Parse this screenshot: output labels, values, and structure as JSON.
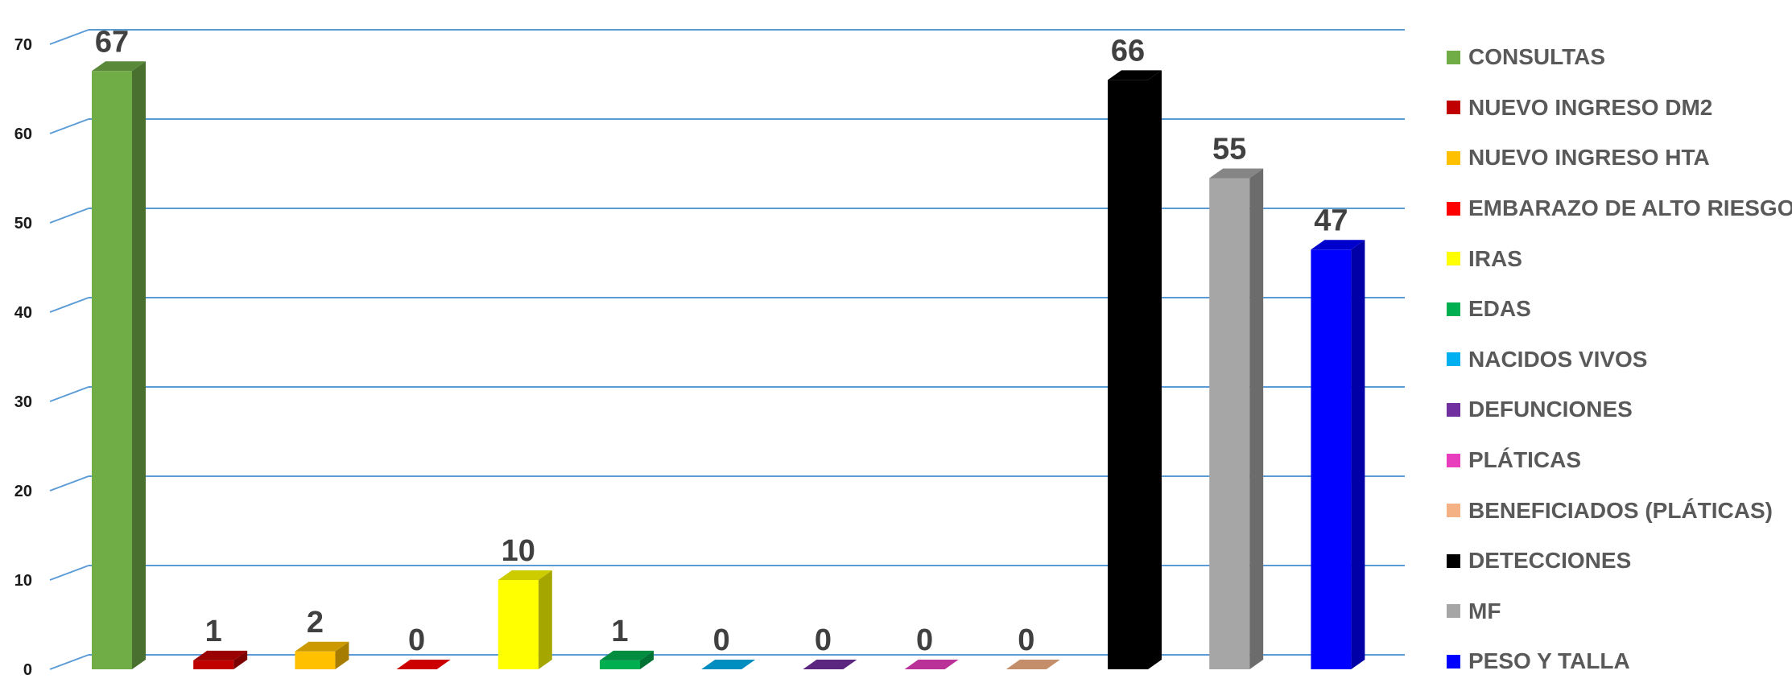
{
  "chart_data": {
    "type": "bar",
    "style": "3d-column",
    "ylim": [
      0,
      70
    ],
    "yticks": [
      0,
      10,
      20,
      30,
      40,
      50,
      60,
      70
    ],
    "grid": true,
    "legend_position": "right",
    "series": [
      {
        "name": "CONSULTAS",
        "value": 67,
        "color": "#70AD47"
      },
      {
        "name": "NUEVO INGRESO DM2",
        "value": 1,
        "color": "#C00000"
      },
      {
        "name": "NUEVO INGRESO HTA",
        "value": 2,
        "color": "#FFC000"
      },
      {
        "name": "EMBARAZO DE ALTO RIESGO",
        "value": 0,
        "color": "#FF0000"
      },
      {
        "name": "IRAS",
        "value": 10,
        "color": "#FFFF00"
      },
      {
        "name": "EDAS",
        "value": 1,
        "color": "#00B050"
      },
      {
        "name": "NACIDOS VIVOS",
        "value": 0,
        "color": "#00B0F0"
      },
      {
        "name": "DEFUNCIONES",
        "value": 0,
        "color": "#7030A0"
      },
      {
        "name": "PLÁTICAS",
        "value": 0,
        "color": "#E83EBE"
      },
      {
        "name": "BENEFICIADOS (PLÁTICAS)",
        "value": 0,
        "color": "#F4B183"
      },
      {
        "name": "DETECCIONES",
        "value": 66,
        "color": "#000000"
      },
      {
        "name": "MF",
        "value": 55,
        "color": "#A6A6A6"
      },
      {
        "name": "PESO Y TALLA",
        "value": 47,
        "color": "#0000FF"
      }
    ]
  }
}
